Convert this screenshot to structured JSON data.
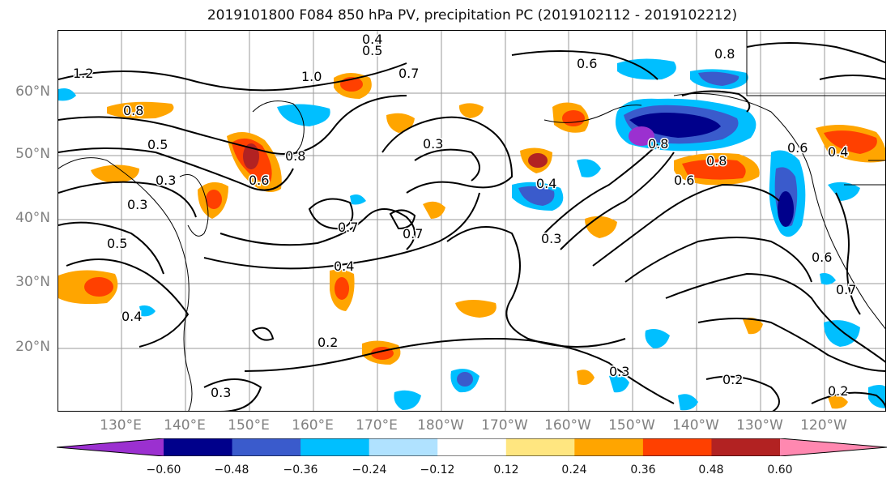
{
  "title": "2019101800 F084 850 hPa PV, precipitation PC (2019102112 - 2019102212)",
  "map": {
    "lat_labels": [
      "60°N",
      "50°N",
      "40°N",
      "30°N",
      "20°N"
    ],
    "lon_labels": [
      "130°E",
      "140°E",
      "150°E",
      "160°E",
      "170°E",
      "180°W",
      "170°W",
      "160°W",
      "150°W",
      "140°W",
      "130°W",
      "120°W"
    ],
    "contour_labels": [
      "1.2",
      "0.8",
      "0.5",
      "1.0",
      "0.4",
      "0.5",
      "0.7",
      "0.6",
      "0.8",
      "0.3",
      "0.8",
      "0.6",
      "0.5",
      "0.3",
      "0.7",
      "0.7",
      "0.4",
      "0.4",
      "0.3",
      "0.6",
      "0.8",
      "0.4",
      "0.6",
      "0.2",
      "0.3",
      "0.3",
      "0.2",
      "0.2",
      "0.6",
      "0.7",
      "0.4",
      "0.8",
      "0.3"
    ]
  },
  "colorbar": {
    "colors": [
      "#9b30d0",
      "#00008b",
      "#3a5bcc",
      "#00bfff",
      "#b0e2ff",
      "#ffffff",
      "#ffe680",
      "#ffa500",
      "#ff4000",
      "#b22222",
      "#ff88b0"
    ],
    "tick_labels": [
      "−0.60",
      "−0.48",
      "−0.36",
      "−0.24",
      "−0.12",
      "0.12",
      "0.24",
      "0.36",
      "0.48",
      "0.60"
    ]
  }
}
